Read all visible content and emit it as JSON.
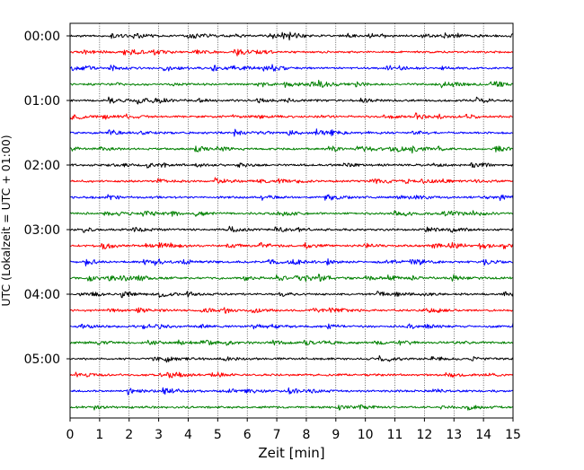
{
  "chart_data": {
    "type": "line",
    "title": "",
    "xlabel": "Zeit  [min]",
    "ylabel": "UTC (Lokalzeit = UTC + 01:00)",
    "xlim": [
      0,
      15
    ],
    "x_ticks": [
      "0",
      "1",
      "2",
      "3",
      "4",
      "5",
      "6",
      "7",
      "8",
      "9",
      "10",
      "11",
      "12",
      "13",
      "14",
      "15"
    ],
    "y_ticks": [
      "00:00",
      "01:00",
      "02:00",
      "03:00",
      "04:00",
      "05:00"
    ],
    "trace_interval_minutes": 15,
    "trace_colors": [
      "#000000",
      "#ff0000",
      "#0000ff",
      "#008000"
    ],
    "trace_start_times": [
      "00:00",
      "00:15",
      "00:30",
      "00:45",
      "01:00",
      "01:15",
      "01:30",
      "01:45",
      "02:00",
      "02:15",
      "02:30",
      "02:45",
      "03:00",
      "03:15",
      "03:30",
      "03:45",
      "04:00",
      "04:15",
      "04:30",
      "04:45",
      "05:00",
      "05:15",
      "05:30",
      "05:45"
    ],
    "grid": "vertical dotted at each minute",
    "legend": "none"
  }
}
